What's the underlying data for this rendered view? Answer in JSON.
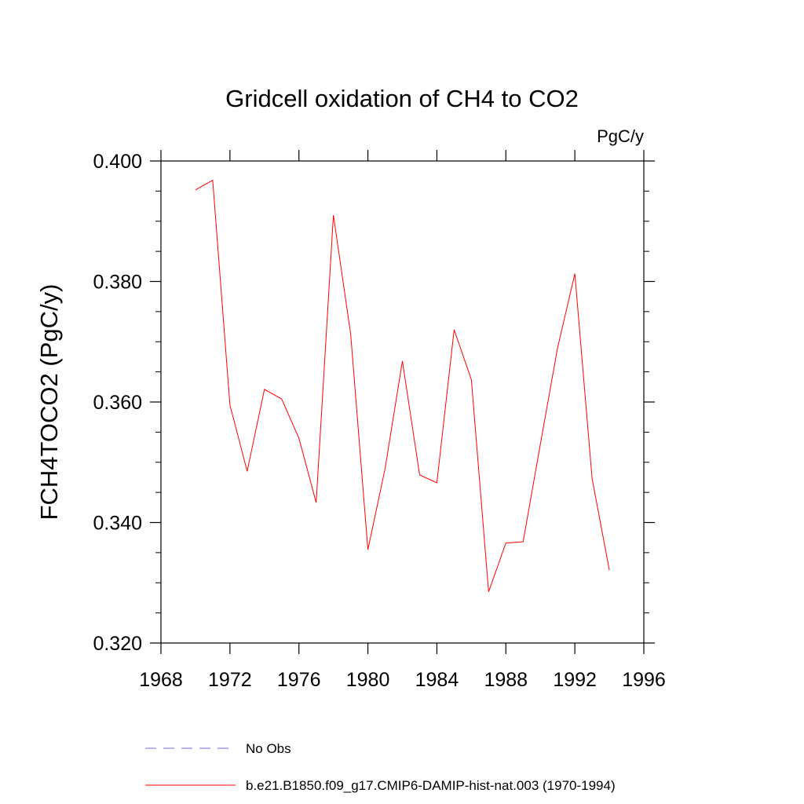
{
  "chart_data": {
    "type": "line",
    "title": "Gridcell oxidation of CH4 to CO2",
    "units_label": "PgC/y",
    "xlabel": "",
    "ylabel": "FCH4TOCO2  (PgC/y)",
    "xlim": [
      1968,
      1996
    ],
    "ylim": [
      0.32,
      0.4
    ],
    "x_ticks": [
      1968,
      1972,
      1976,
      1980,
      1984,
      1988,
      1992,
      1996
    ],
    "x_tick_labels": [
      "1968",
      "1972",
      "1976",
      "1980",
      "1984",
      "1988",
      "1992",
      "1996"
    ],
    "y_ticks": [
      0.32,
      0.34,
      0.36,
      0.38,
      0.4
    ],
    "y_tick_labels": [
      "0.320",
      "0.340",
      "0.360",
      "0.380",
      "0.400"
    ],
    "grid": false,
    "legend_position": "bottom",
    "series": [
      {
        "name": "No Obs",
        "color": "#6b6bd6",
        "style": "dashed",
        "x": [],
        "y": []
      },
      {
        "name": "b.e21.B1850.f09_g17.CMIP6-DAMIP-hist-nat.003 (1970-1994)",
        "color": "#ff0000",
        "style": "solid",
        "x": [
          1970,
          1971,
          1972,
          1973,
          1974,
          1975,
          1976,
          1977,
          1978,
          1979,
          1980,
          1981,
          1982,
          1983,
          1984,
          1985,
          1986,
          1987,
          1988,
          1989,
          1990,
          1991,
          1992,
          1993,
          1994
        ],
        "y": [
          0.3952,
          0.3968,
          0.3595,
          0.3485,
          0.3621,
          0.3605,
          0.354,
          0.3433,
          0.391,
          0.3713,
          0.3355,
          0.349,
          0.3668,
          0.3479,
          0.3466,
          0.372,
          0.3637,
          0.3285,
          0.3366,
          0.3368,
          0.353,
          0.369,
          0.3813,
          0.3473,
          0.3321
        ]
      }
    ]
  }
}
